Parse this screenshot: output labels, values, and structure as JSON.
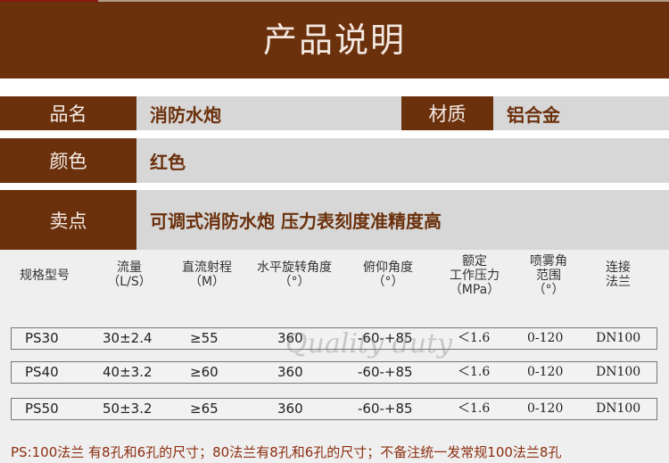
{
  "title": "产品说明",
  "specs": [
    {
      "label": "品名",
      "value": "消防水炮"
    },
    {
      "label": "材质",
      "value": "铝合金"
    },
    {
      "label": "颜色",
      "value": "红色"
    },
    {
      "label": "卖点",
      "value": "可调式消防水炮  压力表刻度准精度高"
    }
  ],
  "table": {
    "headers": [
      [
        "规格型号"
      ],
      [
        "流量",
        "（L/S）"
      ],
      [
        "直流射程",
        "（M）"
      ],
      [
        "水平旋转角度",
        "（°）"
      ],
      [
        "俯仰角度",
        "（°）"
      ],
      [
        "额定",
        "工作压力",
        "（MPa）"
      ],
      [
        "喷雾角",
        "范围",
        "（°）"
      ],
      [
        "连接",
        "法兰"
      ]
    ],
    "rows": [
      [
        "PS30",
        "30±2.4",
        "≥55",
        "360",
        "-60-+85",
        "＜1.6",
        "0-120",
        "DN100"
      ],
      [
        "PS40",
        "40±3.2",
        "≥60",
        "360",
        "-60-+85",
        "＜1.6",
        "0-120",
        "DN100"
      ],
      [
        "PS50",
        "50±3.2",
        "≥65",
        "360",
        "-60-+85",
        "＜1.6",
        "0-120",
        "DN100"
      ]
    ]
  },
  "watermark": "Quality duty",
  "note": "PS:100法兰 有8孔和6孔的尺寸；80法兰有8孔和6孔的尺寸；不备注统一发常规100法兰8孔",
  "colors": {
    "brand": "#6b300c",
    "value_bg": "#d7d7d7",
    "note": "#8b2e10"
  }
}
